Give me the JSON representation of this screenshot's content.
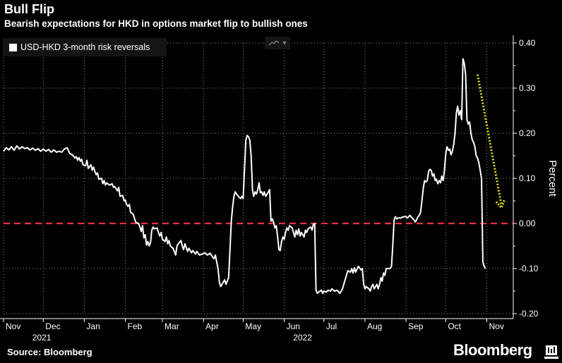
{
  "header": {
    "title": "Bull Flip",
    "subtitle": "Bearish expectations for HKD in options market flip to bullish ones"
  },
  "legend": {
    "label": "USD-HKD 3-month risk reversals",
    "color": "#ffffff"
  },
  "footer": {
    "source": "Source: Bloomberg",
    "brand": "Bloomberg"
  },
  "colors": {
    "line": "#ffffff",
    "zero_line": "#e8313f",
    "annotation_arrow": "#ece11a",
    "grid": "#8c8c8c"
  },
  "chart_data": {
    "type": "line",
    "title": "Bull Flip",
    "subtitle": "Bearish expectations for HKD in options market flip to bullish ones",
    "ylabel": "Percent",
    "xlabel": "",
    "ylim": [
      -0.2,
      0.4
    ],
    "yticks": [
      0.4,
      0.3,
      0.2,
      0.1,
      0.0,
      -0.1,
      -0.2
    ],
    "ytick_labels": [
      "0.40",
      "0.30",
      "0.20",
      "0.10",
      "0.00",
      "-0.10",
      "-0.20"
    ],
    "xlim_days": [
      0,
      385
    ],
    "x_unit": "days since 2021-11-01",
    "xticks": [
      {
        "label": "Nov",
        "day": 0
      },
      {
        "label": "Dec",
        "day": 30
      },
      {
        "label": "Jan",
        "day": 61
      },
      {
        "label": "Feb",
        "day": 92
      },
      {
        "label": "Mar",
        "day": 120
      },
      {
        "label": "Apr",
        "day": 151
      },
      {
        "label": "May",
        "day": 181
      },
      {
        "label": "Jun",
        "day": 212
      },
      {
        "label": "Jul",
        "day": 242
      },
      {
        "label": "Aug",
        "day": 273
      },
      {
        "label": "Sep",
        "day": 304
      },
      {
        "label": "Oct",
        "day": 334
      },
      {
        "label": "Nov",
        "day": 365
      }
    ],
    "year_labels": [
      {
        "label": "2021",
        "day": 15
      },
      {
        "label": "2022",
        "day": 212
      }
    ],
    "reference_line": {
      "y": 0.0,
      "style": "dashed",
      "color": "#e8313f"
    },
    "grid": true,
    "legend_position": "top-left",
    "series": [
      {
        "name": "USD-HKD 3-month risk reversals",
        "points": [
          [
            0,
            0.16
          ],
          [
            2,
            0.168
          ],
          [
            4,
            0.163
          ],
          [
            6,
            0.17
          ],
          [
            8,
            0.162
          ],
          [
            10,
            0.172
          ],
          [
            12,
            0.165
          ],
          [
            14,
            0.17
          ],
          [
            16,
            0.166
          ],
          [
            18,
            0.168
          ],
          [
            20,
            0.163
          ],
          [
            22,
            0.167
          ],
          [
            24,
            0.162
          ],
          [
            26,
            0.166
          ],
          [
            28,
            0.16
          ],
          [
            30,
            0.165
          ],
          [
            32,
            0.16
          ],
          [
            34,
            0.164
          ],
          [
            36,
            0.158
          ],
          [
            38,
            0.163
          ],
          [
            40,
            0.158
          ],
          [
            42,
            0.16
          ],
          [
            44,
            0.158
          ],
          [
            46,
            0.165
          ],
          [
            48,
            0.168
          ],
          [
            50,
            0.155
          ],
          [
            52,
            0.152
          ],
          [
            54,
            0.145
          ],
          [
            55,
            0.148
          ],
          [
            56,
            0.14
          ],
          [
            57,
            0.146
          ],
          [
            58,
            0.138
          ],
          [
            59,
            0.142
          ],
          [
            60,
            0.13
          ],
          [
            62,
            0.128
          ],
          [
            63,
            0.14
          ],
          [
            64,
            0.122
          ],
          [
            66,
            0.13
          ],
          [
            67,
            0.118
          ],
          [
            68,
            0.125
          ],
          [
            69,
            0.115
          ],
          [
            70,
            0.108
          ],
          [
            71,
            0.112
          ],
          [
            72,
            0.098
          ],
          [
            74,
            0.1
          ],
          [
            75,
            0.088
          ],
          [
            76,
            0.095
          ],
          [
            77,
            0.085
          ],
          [
            78,
            0.09
          ],
          [
            80,
            0.085
          ],
          [
            82,
            0.088
          ],
          [
            83,
            0.08
          ],
          [
            84,
            0.082
          ],
          [
            86,
            0.072
          ],
          [
            87,
            0.08
          ],
          [
            88,
            0.06
          ],
          [
            90,
            0.062
          ],
          [
            91,
            0.05
          ],
          [
            92,
            0.052
          ],
          [
            93,
            0.042
          ],
          [
            94,
            0.038
          ],
          [
            95,
            0.042
          ],
          [
            96,
            0.025
          ],
          [
            98,
            0.02
          ],
          [
            99,
            0.01
          ],
          [
            100,
            0.002
          ],
          [
            102,
            0.0
          ],
          [
            103,
            -0.008
          ],
          [
            104,
            -0.018
          ],
          [
            105,
            -0.005
          ],
          [
            106,
            -0.032
          ],
          [
            107,
            -0.025
          ],
          [
            108,
            -0.048
          ],
          [
            109,
            -0.04
          ],
          [
            110,
            -0.05
          ],
          [
            111,
            -0.042
          ],
          [
            112,
            -0.015
          ],
          [
            113,
            -0.008
          ],
          [
            114,
            -0.012
          ],
          [
            116,
            -0.01
          ],
          [
            117,
            -0.02
          ],
          [
            118,
            -0.028
          ],
          [
            119,
            -0.02
          ],
          [
            120,
            -0.035
          ],
          [
            122,
            -0.04
          ],
          [
            123,
            -0.03
          ],
          [
            124,
            -0.045
          ],
          [
            125,
            -0.038
          ],
          [
            126,
            -0.05
          ],
          [
            128,
            -0.055
          ],
          [
            129,
            -0.062
          ],
          [
            130,
            -0.07
          ],
          [
            131,
            -0.05
          ],
          [
            132,
            -0.045
          ],
          [
            134,
            -0.038
          ],
          [
            135,
            -0.05
          ],
          [
            136,
            -0.058
          ],
          [
            137,
            -0.045
          ],
          [
            139,
            -0.062
          ],
          [
            140,
            -0.055
          ],
          [
            142,
            -0.065
          ],
          [
            143,
            -0.06
          ],
          [
            145,
            -0.068
          ],
          [
            146,
            -0.062
          ],
          [
            148,
            -0.07
          ],
          [
            150,
            -0.068
          ],
          [
            152,
            -0.065
          ],
          [
            154,
            -0.07
          ],
          [
            156,
            -0.066
          ],
          [
            158,
            -0.075
          ],
          [
            159,
            -0.078
          ],
          [
            160,
            -0.07
          ],
          [
            161,
            -0.085
          ],
          [
            162,
            -0.1
          ],
          [
            163,
            -0.13
          ],
          [
            164,
            -0.14
          ],
          [
            165,
            -0.135
          ],
          [
            166,
            -0.13
          ],
          [
            167,
            -0.125
          ],
          [
            168,
            -0.135
          ],
          [
            170,
            -0.12
          ],
          [
            171,
            -0.06
          ],
          [
            172,
            0.005
          ],
          [
            173,
            0.035
          ],
          [
            174,
            0.06
          ],
          [
            175,
            0.07
          ],
          [
            176,
            0.065
          ],
          [
            178,
            0.058
          ],
          [
            179,
            0.055
          ],
          [
            180,
            0.06
          ],
          [
            181,
            0.055
          ],
          [
            182,
            0.12
          ],
          [
            183,
            0.185
          ],
          [
            184,
            0.195
          ],
          [
            185,
            0.192
          ],
          [
            186,
            0.185
          ],
          [
            187,
            0.15
          ],
          [
            188,
            0.075
          ],
          [
            189,
            0.06
          ],
          [
            190,
            0.07
          ],
          [
            191,
            0.065
          ],
          [
            192,
            0.075
          ],
          [
            193,
            0.09
          ],
          [
            194,
            0.068
          ],
          [
            195,
            0.07
          ],
          [
            196,
            0.062
          ],
          [
            197,
            0.07
          ],
          [
            198,
            0.06
          ],
          [
            199,
            0.065
          ],
          [
            200,
            0.07
          ],
          [
            201,
            0.075
          ],
          [
            202,
            0.005
          ],
          [
            203,
            0.01
          ],
          [
            204,
            0.002
          ],
          [
            205,
            -0.01
          ],
          [
            206,
            -0.005
          ],
          [
            207,
            -0.03
          ],
          [
            208,
            -0.058
          ],
          [
            209,
            -0.06
          ],
          [
            210,
            -0.04
          ],
          [
            211,
            -0.03
          ],
          [
            212,
            -0.035
          ],
          [
            213,
            -0.02
          ],
          [
            214,
            -0.01
          ],
          [
            215,
            -0.015
          ],
          [
            216,
            -0.005
          ],
          [
            218,
            -0.01
          ],
          [
            220,
            -0.03
          ],
          [
            221,
            -0.015
          ],
          [
            222,
            -0.025
          ],
          [
            223,
            -0.012
          ],
          [
            224,
            -0.028
          ],
          [
            225,
            -0.02
          ],
          [
            227,
            -0.03
          ],
          [
            228,
            -0.015
          ],
          [
            229,
            -0.02
          ],
          [
            230,
            -0.012
          ],
          [
            232,
            -0.008
          ],
          [
            233,
            -0.015
          ],
          [
            234,
            -0.002
          ],
          [
            235,
            0.0
          ],
          [
            236,
            -0.148
          ],
          [
            237,
            -0.155
          ],
          [
            238,
            -0.152
          ],
          [
            240,
            -0.148
          ],
          [
            241,
            -0.155
          ],
          [
            242,
            -0.15
          ],
          [
            244,
            -0.152
          ],
          [
            245,
            -0.148
          ],
          [
            247,
            -0.15
          ],
          [
            248,
            -0.145
          ],
          [
            250,
            -0.15
          ],
          [
            252,
            -0.148
          ],
          [
            254,
            -0.155
          ],
          [
            255,
            -0.15
          ],
          [
            256,
            -0.145
          ],
          [
            258,
            -0.125
          ],
          [
            260,
            -0.105
          ],
          [
            262,
            -0.108
          ],
          [
            263,
            -0.1
          ],
          [
            264,
            -0.11
          ],
          [
            265,
            -0.098
          ],
          [
            266,
            -0.108
          ],
          [
            268,
            -0.095
          ],
          [
            270,
            -0.103
          ],
          [
            271,
            -0.1
          ],
          [
            272,
            -0.135
          ],
          [
            273,
            -0.145
          ],
          [
            274,
            -0.14
          ],
          [
            276,
            -0.145
          ],
          [
            277,
            -0.15
          ],
          [
            278,
            -0.14
          ],
          [
            279,
            -0.135
          ],
          [
            280,
            -0.145
          ],
          [
            282,
            -0.135
          ],
          [
            283,
            -0.145
          ],
          [
            284,
            -0.135
          ],
          [
            285,
            -0.12
          ],
          [
            286,
            -0.128
          ],
          [
            287,
            -0.11
          ],
          [
            288,
            -0.115
          ],
          [
            289,
            -0.1
          ],
          [
            291,
            -0.1
          ],
          [
            292,
            -0.1
          ],
          [
            293,
            -0.095
          ],
          [
            294,
            -0.05
          ],
          [
            295,
            0.008
          ],
          [
            296,
            0.015
          ],
          [
            297,
            0.01
          ],
          [
            298,
            0.012
          ],
          [
            300,
            0.012
          ],
          [
            302,
            0.015
          ],
          [
            304,
            0.015
          ],
          [
            305,
            0.012
          ],
          [
            306,
            0.015
          ],
          [
            307,
            0.018
          ],
          [
            308,
            0.014
          ],
          [
            310,
            0.008
          ],
          [
            311,
            0.003
          ],
          [
            312,
            0.008
          ],
          [
            313,
            0.015
          ],
          [
            314,
            0.018
          ],
          [
            315,
            0.025
          ],
          [
            316,
            0.05
          ],
          [
            317,
            0.078
          ],
          [
            318,
            0.095
          ],
          [
            319,
            0.092
          ],
          [
            320,
            0.095
          ],
          [
            321,
            0.115
          ],
          [
            322,
            0.12
          ],
          [
            323,
            0.118
          ],
          [
            324,
            0.105
          ],
          [
            325,
            0.11
          ],
          [
            326,
            0.095
          ],
          [
            327,
            0.098
          ],
          [
            328,
            0.088
          ],
          [
            329,
            0.095
          ],
          [
            330,
            0.09
          ],
          [
            331,
            0.105
          ],
          [
            332,
            0.095
          ],
          [
            333,
            0.118
          ],
          [
            334,
            0.155
          ],
          [
            335,
            0.17
          ],
          [
            336,
            0.162
          ],
          [
            337,
            0.165
          ],
          [
            338,
            0.152
          ],
          [
            339,
            0.16
          ],
          [
            340,
            0.175
          ],
          [
            341,
            0.2
          ],
          [
            342,
            0.245
          ],
          [
            343,
            0.26
          ],
          [
            344,
            0.24
          ],
          [
            345,
            0.25
          ],
          [
            346,
            0.23
          ],
          [
            347,
            0.365
          ],
          [
            348,
            0.355
          ],
          [
            349,
            0.33
          ],
          [
            350,
            0.23
          ],
          [
            351,
            0.22
          ],
          [
            352,
            0.225
          ],
          [
            353,
            0.2
          ],
          [
            354,
            0.185
          ],
          [
            355,
            0.18
          ],
          [
            356,
            0.17
          ],
          [
            357,
            0.15
          ],
          [
            358,
            0.145
          ],
          [
            359,
            0.135
          ],
          [
            360,
            0.118
          ],
          [
            361,
            0.1
          ],
          [
            362,
            -0.085
          ],
          [
            363,
            -0.095
          ],
          [
            364,
            -0.1
          ]
        ]
      }
    ],
    "annotations": [
      {
        "type": "dotted-arrow",
        "color": "#ece11a",
        "from": {
          "day": 358,
          "y": 0.33
        },
        "to": {
          "day": 376,
          "y": 0.035
        }
      }
    ]
  }
}
